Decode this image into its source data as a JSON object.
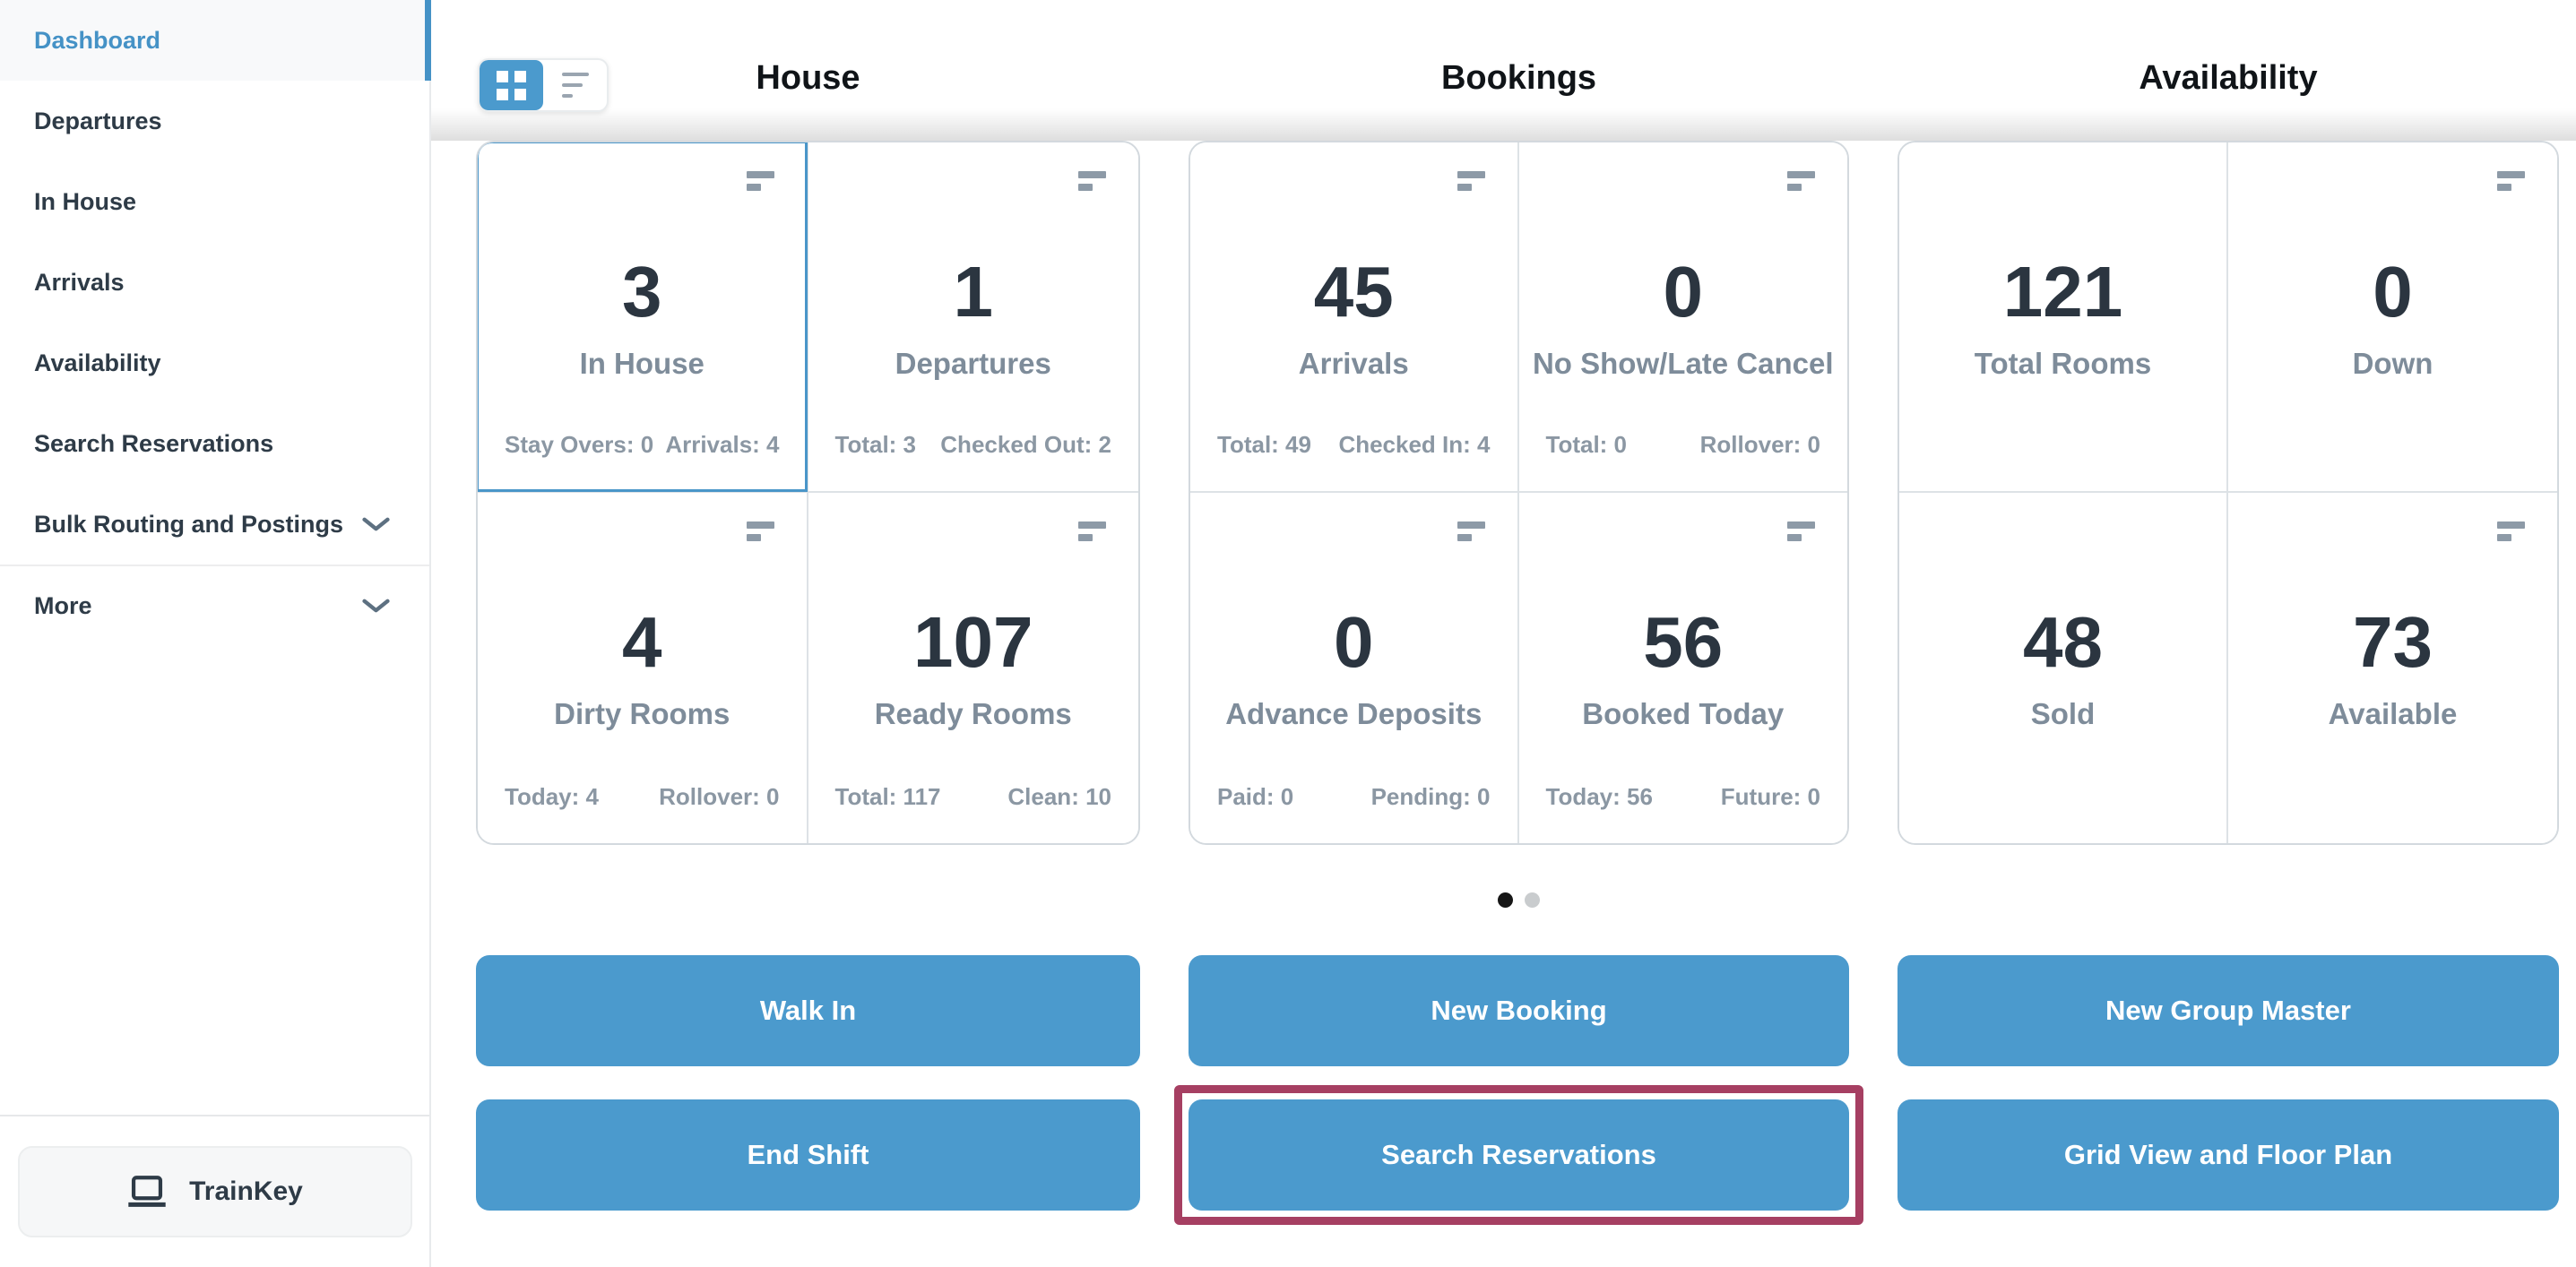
{
  "sidebar": {
    "items": [
      {
        "label": "Dashboard",
        "active": true,
        "chevron": false,
        "separated": false
      },
      {
        "label": "Departures",
        "active": false,
        "chevron": false,
        "separated": false
      },
      {
        "label": "In House",
        "active": false,
        "chevron": false,
        "separated": false
      },
      {
        "label": "Arrivals",
        "active": false,
        "chevron": false,
        "separated": false
      },
      {
        "label": "Availability",
        "active": false,
        "chevron": false,
        "separated": false
      },
      {
        "label": "Search Reservations",
        "active": false,
        "chevron": false,
        "separated": false
      },
      {
        "label": "Bulk Routing and Postings",
        "active": false,
        "chevron": true,
        "separated": false
      },
      {
        "label": "More",
        "active": false,
        "chevron": true,
        "separated": true
      }
    ],
    "trainkey_label": "TrainKey"
  },
  "view_toggle": {
    "selected": "grid"
  },
  "columns": [
    {
      "title": "House",
      "cards": [
        {
          "value": "3",
          "label": "In House",
          "stats": {
            "left": "Stay Overs: 0",
            "right": "Arrivals: 4"
          },
          "menu_icon": true,
          "highlighted": true
        },
        {
          "value": "1",
          "label": "Departures",
          "stats": {
            "left": "Total: 3",
            "right": "Checked Out: 2"
          },
          "menu_icon": true,
          "highlighted": false
        },
        {
          "value": "4",
          "label": "Dirty Rooms",
          "stats": {
            "left": "Today: 4",
            "right": "Rollover: 0"
          },
          "menu_icon": true,
          "highlighted": false
        },
        {
          "value": "107",
          "label": "Ready Rooms",
          "stats": {
            "left": "Total: 117",
            "right": "Clean: 10"
          },
          "menu_icon": true,
          "highlighted": false
        }
      ],
      "buttons": [
        {
          "label": "Walk In",
          "highlighted": false
        },
        {
          "label": "End Shift",
          "highlighted": false
        }
      ]
    },
    {
      "title": "Bookings",
      "cards": [
        {
          "value": "45",
          "label": "Arrivals",
          "stats": {
            "left": "Total: 49",
            "right": "Checked In: 4"
          },
          "menu_icon": true,
          "highlighted": false
        },
        {
          "value": "0",
          "label": "No Show/Late Cancel",
          "stats": {
            "left": "Total: 0",
            "right": "Rollover: 0"
          },
          "menu_icon": true,
          "highlighted": false
        },
        {
          "value": "0",
          "label": "Advance Deposits",
          "stats": {
            "left": "Paid: 0",
            "right": "Pending: 0"
          },
          "menu_icon": true,
          "highlighted": false
        },
        {
          "value": "56",
          "label": "Booked Today",
          "stats": {
            "left": "Today: 56",
            "right": "Future: 0"
          },
          "menu_icon": true,
          "highlighted": false
        }
      ],
      "buttons": [
        {
          "label": "New Booking",
          "highlighted": false
        },
        {
          "label": "Search Reservations",
          "highlighted": true
        }
      ]
    },
    {
      "title": "Availability",
      "cards": [
        {
          "value": "121",
          "label": "Total Rooms",
          "stats": null,
          "menu_icon": false,
          "highlighted": false
        },
        {
          "value": "0",
          "label": "Down",
          "stats": null,
          "menu_icon": true,
          "highlighted": false
        },
        {
          "value": "48",
          "label": "Sold",
          "stats": null,
          "menu_icon": false,
          "highlighted": false
        },
        {
          "value": "73",
          "label": "Available",
          "stats": null,
          "menu_icon": true,
          "highlighted": false
        }
      ],
      "buttons": [
        {
          "label": "New Group Master",
          "highlighted": false
        },
        {
          "label": "Grid View and Floor Plan",
          "highlighted": false
        }
      ]
    }
  ],
  "carousel": {
    "dots": 2,
    "active": 0
  },
  "colors": {
    "accent_blue": "#4b9acd",
    "selected_card_border": "#4a96c9",
    "highlight_maroon": "#a63f62",
    "number_dark": "#2b3540",
    "label_gray": "#7e8c9a",
    "stat_gray": "#8b97a3",
    "sidebar_text": "#2e3b47"
  }
}
